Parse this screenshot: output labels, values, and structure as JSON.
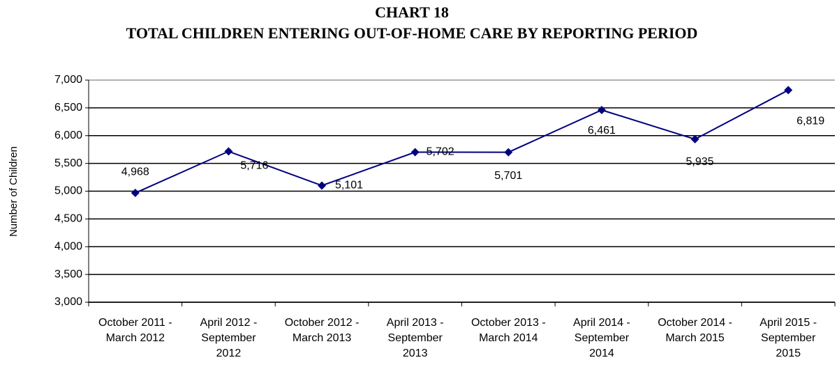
{
  "chart_data": {
    "type": "line",
    "title": "CHART 18",
    "subtitle": "TOTAL CHILDREN ENTERING OUT-OF-HOME CARE BY REPORTING PERIOD",
    "y_label": "Number of Children",
    "categories": [
      "October 2011 - March 2012",
      "April 2012 - September 2012",
      "October 2012 - March 2013",
      "April 2013 - September 2013",
      "October 2013 - March 2014",
      "April 2014 - September 2014",
      "October 2014 - March 2015",
      "April 2015 - September 2015"
    ],
    "values": [
      4968,
      5716,
      5101,
      5702,
      5701,
      6461,
      5935,
      6819
    ],
    "value_labels": [
      "4,968",
      "5,716",
      "5,101",
      "5,702",
      "5,701",
      "6,461",
      "5,935",
      "6,819"
    ],
    "color": "#000080",
    "ylim": [
      3000,
      7000
    ],
    "yticks": [
      {
        "value": 3000,
        "label": "3,000"
      },
      {
        "value": 3500,
        "label": "3,500"
      },
      {
        "value": 4000,
        "label": "4,000"
      },
      {
        "value": 4500,
        "label": "4,500"
      },
      {
        "value": 5000,
        "label": "5,000"
      },
      {
        "value": 5500,
        "label": "5,500"
      },
      {
        "value": 6000,
        "label": "6,000"
      },
      {
        "value": 6500,
        "label": "6,500"
      },
      {
        "value": 7000,
        "label": "7,000"
      }
    ],
    "grid": true
  }
}
